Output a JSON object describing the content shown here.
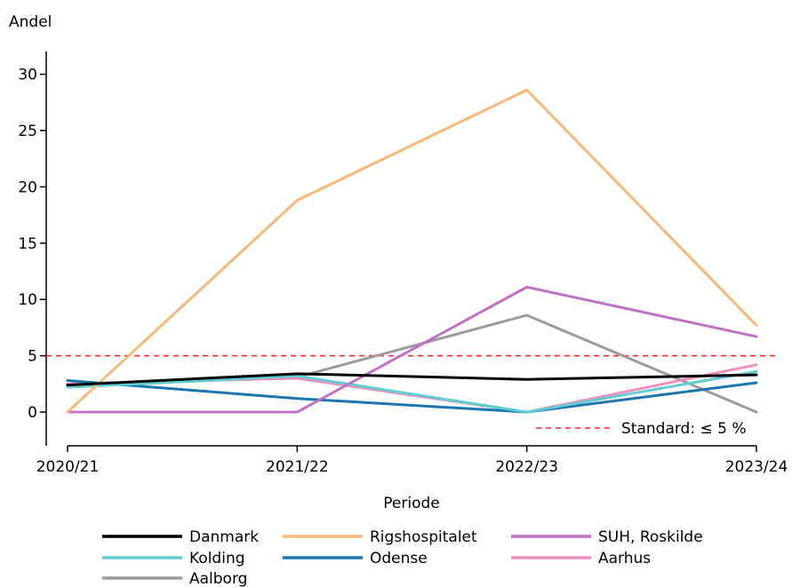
{
  "chart_data": {
    "type": "line",
    "ylabel": "Andel",
    "xlabel": "Periode",
    "categories": [
      "2020/21",
      "2021/22",
      "2022/23",
      "2023/24"
    ],
    "ylim": [
      -3,
      31
    ],
    "yticks": [
      0,
      5,
      10,
      15,
      20,
      25,
      30
    ],
    "grid": false,
    "legend_position": "bottom",
    "series": [
      {
        "name": "Danmark",
        "color": "#000000",
        "values": [
          2.4,
          3.4,
          2.9,
          3.3
        ]
      },
      {
        "name": "Rigshospitalet",
        "color": "#f7b878",
        "values": [
          0.0,
          18.8,
          28.6,
          7.7
        ]
      },
      {
        "name": "SUH, Roskilde",
        "color": "#bf72c5",
        "values": [
          0.0,
          0.0,
          11.1,
          6.7
        ]
      },
      {
        "name": "Kolding",
        "color": "#62cdd0",
        "values": [
          2.2,
          3.2,
          0.0,
          3.6
        ]
      },
      {
        "name": "Odense",
        "color": "#1b75b0",
        "values": [
          2.8,
          1.2,
          0.0,
          2.6
        ]
      },
      {
        "name": "Aarhus",
        "color": "#ef8fbf",
        "values": [
          2.5,
          3.0,
          0.0,
          4.2
        ]
      },
      {
        "name": "Aalborg",
        "color": "#9b9b9b",
        "values": [
          2.3,
          3.1,
          8.6,
          0.0
        ]
      }
    ],
    "reference_line": {
      "value": 5,
      "color": "#ff2020",
      "label": "Standard: ≤ 5 %"
    }
  }
}
